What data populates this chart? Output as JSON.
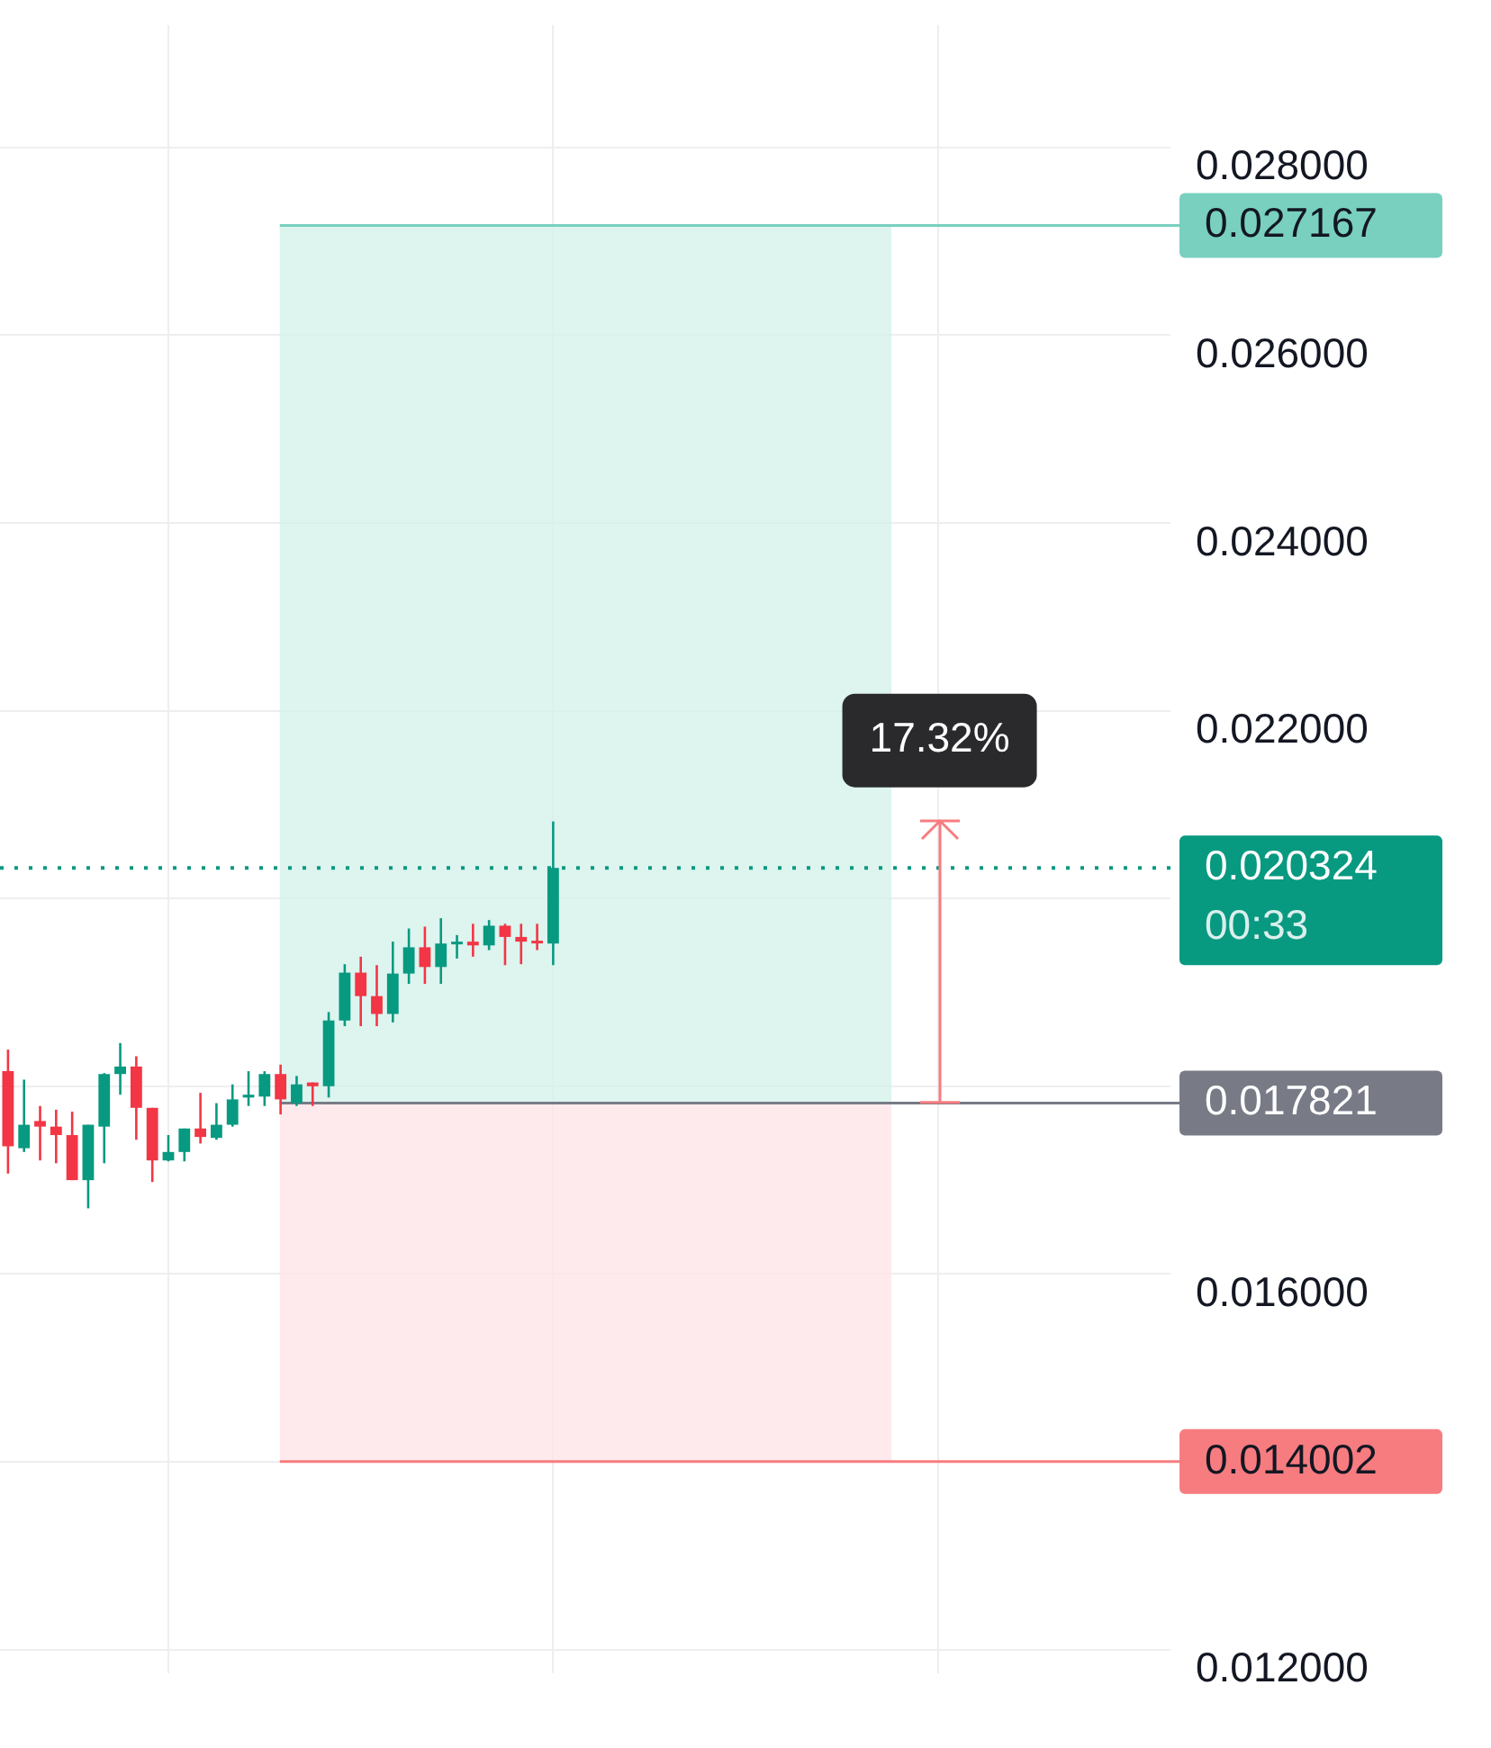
{
  "chart_data": {
    "type": "candlestick",
    "categories": [
      null,
      null,
      null,
      null,
      null,
      null,
      null,
      null,
      null,
      null,
      null,
      null,
      null,
      null,
      null,
      null,
      null,
      null,
      null,
      null,
      null,
      null,
      null,
      null,
      null,
      null,
      null,
      null,
      null,
      null,
      null,
      null,
      null,
      null,
      null,
      null,
      null,
      null,
      null,
      null,
      null,
      null,
      null,
      null,
      null,
      null,
      null,
      null,
      null,
      null,
      null,
      null,
      null,
      null,
      null,
      null,
      null,
      null,
      null,
      null,
      null,
      null,
      null,
      null,
      null,
      null,
      null,
      null,
      null,
      null,
      null,
      null,
      null
    ],
    "ohlc": [
      [
        0.01816,
        0.01839,
        0.01707,
        0.01736
      ],
      [
        0.01734,
        0.01807,
        0.0173,
        0.01759
      ],
      [
        0.01763,
        0.01779,
        0.01721,
        0.01757
      ],
      [
        0.01757,
        0.01775,
        0.01718,
        0.01748
      ],
      [
        0.01748,
        0.01773,
        0.017,
        0.017
      ],
      [
        0.017,
        0.01759,
        0.0167,
        0.01759
      ],
      [
        0.01757,
        0.01814,
        0.01718,
        0.01813
      ],
      [
        0.01813,
        0.01846,
        0.01791,
        0.01821
      ],
      [
        0.01821,
        0.01832,
        0.01743,
        0.01777
      ],
      [
        0.01777,
        0.01777,
        0.01698,
        0.01721
      ],
      [
        0.01721,
        0.01748,
        0.0172,
        0.0173
      ],
      [
        0.0173,
        0.01755,
        0.0172,
        0.01755
      ],
      [
        0.01755,
        0.01793,
        0.01739,
        0.01746
      ],
      [
        0.01745,
        0.01782,
        0.01743,
        0.01759
      ],
      [
        0.01759,
        0.01802,
        0.01757,
        0.01786
      ],
      [
        0.01788,
        0.01816,
        0.01779,
        0.01791
      ],
      [
        0.01789,
        0.01816,
        0.01779,
        0.01813
      ],
      [
        0.01813,
        0.01823,
        0.0177,
        0.01786
      ],
      [
        0.01782,
        0.01811,
        0.01779,
        0.01802
      ],
      [
        0.01804,
        0.01804,
        0.01779,
        0.018
      ],
      [
        0.018,
        0.01879,
        0.01788,
        0.0187
      ],
      [
        0.0187,
        0.0193,
        0.01864,
        0.01921
      ],
      [
        0.01921,
        0.01938,
        0.01864,
        0.01896
      ],
      [
        0.01896,
        0.01929,
        0.01864,
        0.01877
      ],
      [
        0.01877,
        0.01954,
        0.01868,
        0.0192
      ],
      [
        0.0192,
        0.01968,
        0.01909,
        0.01948
      ],
      [
        0.01948,
        0.0197,
        0.01909,
        0.01927
      ],
      [
        0.01927,
        0.01979,
        0.01909,
        0.01952
      ],
      [
        0.01952,
        0.01961,
        0.01936,
        0.01954
      ],
      [
        0.01954,
        0.01973,
        0.01938,
        0.0195
      ],
      [
        0.0195,
        0.01977,
        0.01945,
        0.01971
      ],
      [
        0.01971,
        0.01973,
        0.01929,
        0.01959
      ],
      [
        0.01959,
        0.01973,
        0.0193,
        0.01954
      ],
      [
        0.01955,
        0.01973,
        0.01945,
        0.01954
      ],
      [
        0.01952,
        0.02082,
        0.01929,
        0.020324
      ],
      null,
      null,
      null,
      null,
      null,
      null,
      null,
      null,
      null,
      null,
      null,
      null,
      null,
      null,
      null,
      null,
      null,
      null,
      null,
      null,
      null,
      null,
      null,
      null,
      null,
      null,
      null,
      null,
      null,
      null,
      null,
      null,
      null,
      null,
      null,
      null,
      null,
      null
    ],
    "colors": [
      "#f23645",
      "#089981",
      "#f23645",
      "#f23645",
      "#f23645",
      "#089981",
      "#089981",
      "#089981",
      "#f23645",
      "#f23645",
      "#089981",
      "#089981",
      "#f23645",
      "#089981",
      "#089981",
      "#089981",
      "#089981",
      "#f23645",
      "#089981",
      "#f23645",
      "#089981",
      "#089981",
      "#f23645",
      "#f23645",
      "#089981",
      "#089981",
      "#f23645",
      "#089981",
      "#089981",
      "#f23645",
      "#089981",
      "#f23645",
      "#f23645",
      "#f23645",
      "#089981",
      null,
      null,
      null,
      null,
      null,
      null,
      null,
      null,
      null,
      null,
      null,
      null,
      null,
      null,
      null,
      null,
      null,
      null,
      null,
      null,
      null,
      null,
      null,
      null,
      null,
      null,
      null,
      null,
      null,
      null,
      null,
      null,
      null,
      null,
      null,
      null,
      null,
      null
    ],
    "ylim": [
      0.01175,
      0.0293
    ],
    "yticks": [
      {
        "value": 0.012,
        "label": "0.012000"
      },
      {
        "value": 0.014,
        "label": null
      },
      {
        "value": 0.016,
        "label": "0.016000"
      },
      {
        "value": 0.018,
        "label": null
      },
      {
        "value": 0.02,
        "label": null
      },
      {
        "value": 0.022,
        "label": "0.022000"
      },
      {
        "value": 0.024,
        "label": "0.024000"
      },
      {
        "value": 0.026,
        "label": "0.026000"
      },
      {
        "value": 0.028,
        "label": "0.028000"
      }
    ],
    "grid": true,
    "tick_labels": "y",
    "bands": [
      {
        "axis": "y",
        "from": 0.017821,
        "to": 0.027167,
        "color": "#d2f0e9"
      },
      {
        "axis": "y",
        "from": 0.014002,
        "to": 0.017821,
        "color": "#fde3e6"
      }
    ],
    "ref_lines": [
      {
        "axis": "y",
        "value": 0.027167,
        "label": "0.027167",
        "color": "#79d0bf"
      },
      {
        "axis": "y",
        "value": 0.020324,
        "label": "0.020324",
        "color": "#089981",
        "line_style": "dotted"
      },
      {
        "axis": "y",
        "value": 0.017821,
        "label": "0.017821",
        "color": "#787b86"
      },
      {
        "axis": "y",
        "value": 0.014002,
        "label": "0.014002",
        "color": "#f77c80"
      }
    ],
    "annotations": [
      "00:33",
      "17.32%"
    ]
  }
}
